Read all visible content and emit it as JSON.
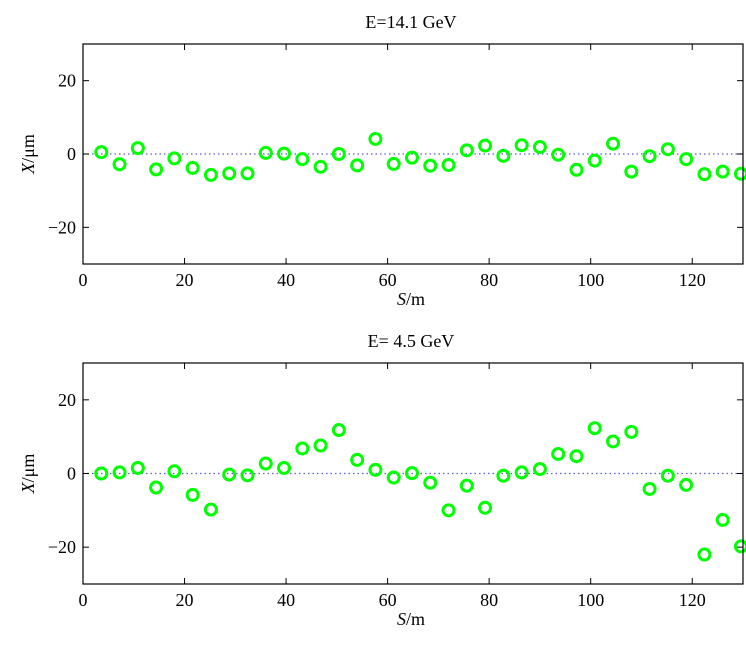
{
  "chart_data": [
    {
      "type": "scatter",
      "title": "E=14.1 GeV",
      "xlabel_var": "S",
      "xlabel_unit": "/m",
      "ylabel_var": "X",
      "ylabel_unit": "/μm",
      "xlim": [
        0,
        130
      ],
      "ylim": [
        -30,
        30
      ],
      "xticks": [
        0,
        20,
        40,
        60,
        80,
        100,
        120
      ],
      "yticks": [
        -20,
        0,
        20
      ],
      "xtick_labels": [
        "0",
        "20",
        "40",
        "60",
        "80",
        "100",
        "120"
      ],
      "ytick_labels": [
        "−20",
        "0",
        "20"
      ],
      "marker": "circle",
      "marker_color": "#00ff00",
      "reference_line": {
        "y": 0,
        "style": "dotted",
        "color": "#5a5acf"
      },
      "grid": false,
      "x": [
        3.6,
        7.2,
        10.8,
        14.4,
        18.0,
        21.6,
        25.2,
        28.8,
        32.4,
        36.0,
        39.6,
        43.2,
        46.8,
        50.4,
        54.0,
        57.6,
        61.2,
        64.8,
        68.4,
        72.0,
        75.6,
        79.2,
        82.8,
        86.4,
        90.0,
        93.6,
        97.2,
        100.8,
        104.4,
        108.0,
        111.6,
        115.2,
        118.8,
        122.4,
        126.0,
        129.6
      ],
      "y": [
        0.5,
        -2.8,
        1.6,
        -4.2,
        -1.2,
        -3.8,
        -5.7,
        -5.3,
        -5.3,
        0.3,
        0.1,
        -1.4,
        -3.5,
        0.0,
        -3.1,
        4.1,
        -2.7,
        -1.0,
        -3.2,
        -3.0,
        1.0,
        2.3,
        -0.5,
        2.4,
        1.9,
        -0.2,
        -4.3,
        -1.8,
        2.8,
        -4.8,
        -0.6,
        1.3,
        -1.4,
        -5.5,
        -4.8,
        -5.4
      ]
    },
    {
      "type": "scatter",
      "title": "E= 4.5 GeV",
      "xlabel_var": "S",
      "xlabel_unit": "/m",
      "ylabel_var": "X",
      "ylabel_unit": "/μm",
      "xlim": [
        0,
        130
      ],
      "ylim": [
        -30,
        30
      ],
      "xticks": [
        0,
        20,
        40,
        60,
        80,
        100,
        120
      ],
      "yticks": [
        -20,
        0,
        20
      ],
      "xtick_labels": [
        "0",
        "20",
        "40",
        "60",
        "80",
        "100",
        "120"
      ],
      "ytick_labels": [
        "−20",
        "0",
        "20"
      ],
      "marker": "circle",
      "marker_color": "#00ff00",
      "reference_line": {
        "y": 0,
        "style": "dotted",
        "color": "#5a5acf"
      },
      "grid": false,
      "x": [
        3.6,
        7.2,
        10.8,
        14.4,
        18.0,
        21.6,
        25.2,
        28.8,
        32.4,
        36.0,
        39.6,
        43.2,
        46.8,
        50.4,
        54.0,
        57.6,
        61.2,
        64.8,
        68.4,
        72.0,
        75.6,
        79.2,
        82.8,
        86.4,
        90.0,
        93.6,
        97.2,
        100.8,
        104.4,
        108.0,
        111.6,
        115.2,
        118.8,
        122.4,
        126.0,
        129.6
      ],
      "y": [
        0.0,
        0.3,
        1.5,
        -3.8,
        0.6,
        -5.8,
        -9.8,
        -0.3,
        -0.5,
        2.7,
        1.5,
        6.8,
        7.6,
        11.8,
        3.7,
        1.0,
        -1.1,
        0.1,
        -2.5,
        -10.0,
        -3.3,
        -9.3,
        -0.6,
        0.3,
        1.2,
        5.3,
        4.7,
        12.3,
        8.7,
        11.3,
        -4.2,
        -0.6,
        -3.1,
        -22.0,
        -12.6,
        -19.8
      ]
    }
  ]
}
